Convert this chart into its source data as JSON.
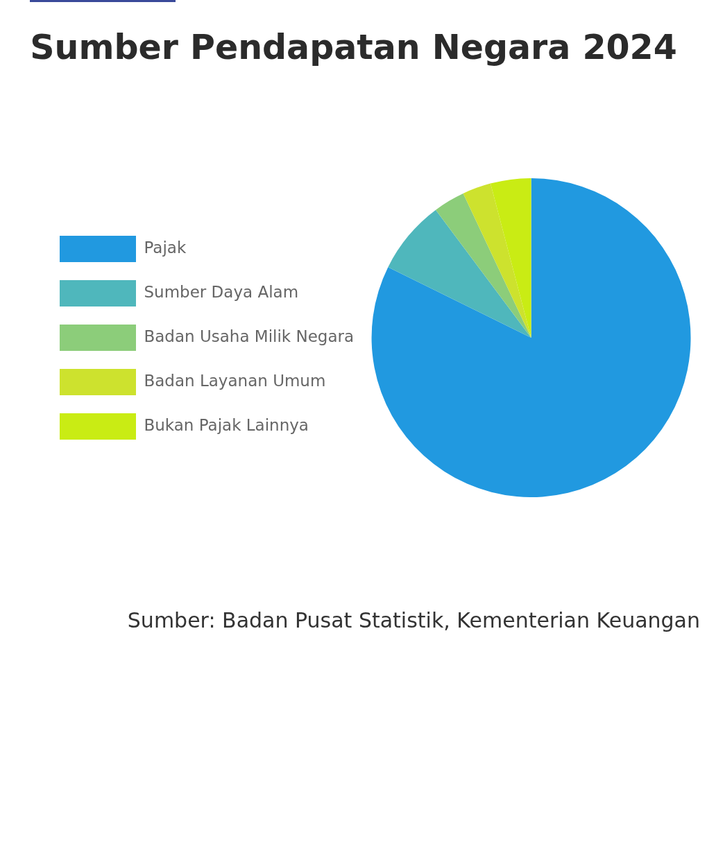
{
  "chart_data": {
    "type": "pie",
    "title": "Sumber Pendapatan Negara 2024",
    "categories": [
      "Pajak",
      "Sumber Daya Alam",
      "Badan Usaha Milik Negara",
      "Badan Layanan Umum",
      "Bukan Pajak Lainnya"
    ],
    "values": [
      82.3,
      7.5,
      3.2,
      2.9,
      4.1
    ],
    "colors": [
      "#2199e0",
      "#4fb7bc",
      "#8ccd7a",
      "#cde22e",
      "#c9ec14"
    ],
    "legend": "left",
    "annotations": [
      "Sumber: Badan Pusat Statistik, Kementerian Keuangan"
    ]
  }
}
